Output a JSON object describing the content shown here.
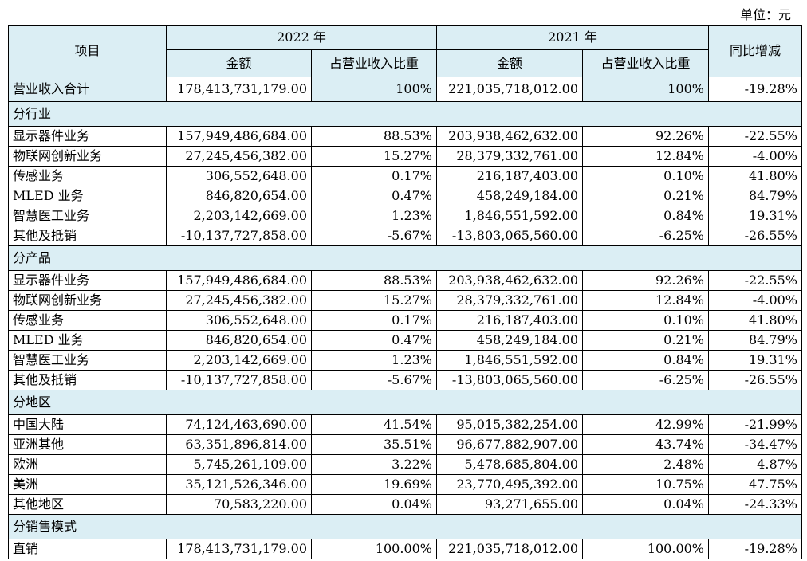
{
  "unit_label": "单位：元",
  "header": {
    "item": "项目",
    "year_2022": "2022 年",
    "year_2021": "2021 年",
    "yoy": "同比增减",
    "amount": "金额",
    "ratio": "占营业收入比重"
  },
  "total": {
    "label": "营业收入合计",
    "amt2022": "178,413,731,179.00",
    "pct2022": "100%",
    "amt2021": "221,035,718,012.00",
    "pct2021": "100%",
    "yoy": "-19.28%"
  },
  "sections": [
    {
      "title": "分行业",
      "rows": [
        {
          "label": "显示器件业务",
          "amt2022": "157,949,486,684.00",
          "pct2022": "88.53%",
          "amt2021": "203,938,462,632.00",
          "pct2021": "92.26%",
          "yoy": "-22.55%"
        },
        {
          "label": "物联网创新业务",
          "amt2022": "27,245,456,382.00",
          "pct2022": "15.27%",
          "amt2021": "28,379,332,761.00",
          "pct2021": "12.84%",
          "yoy": "-4.00%"
        },
        {
          "label": "传感业务",
          "amt2022": "306,552,648.00",
          "pct2022": "0.17%",
          "amt2021": "216,187,403.00",
          "pct2021": "0.10%",
          "yoy": "41.80%"
        },
        {
          "label": "MLED 业务",
          "amt2022": "846,820,654.00",
          "pct2022": "0.47%",
          "amt2021": "458,249,184.00",
          "pct2021": "0.21%",
          "yoy": "84.79%"
        },
        {
          "label": "智慧医工业务",
          "amt2022": "2,203,142,669.00",
          "pct2022": "1.23%",
          "amt2021": "1,846,551,592.00",
          "pct2021": "0.84%",
          "yoy": "19.31%"
        },
        {
          "label": "其他及抵销",
          "amt2022": "-10,137,727,858.00",
          "pct2022": "-5.67%",
          "amt2021": "-13,803,065,560.00",
          "pct2021": "-6.25%",
          "yoy": "-26.55%"
        }
      ]
    },
    {
      "title": "分产品",
      "rows": [
        {
          "label": "显示器件业务",
          "amt2022": "157,949,486,684.00",
          "pct2022": "88.53%",
          "amt2021": "203,938,462,632.00",
          "pct2021": "92.26%",
          "yoy": "-22.55%"
        },
        {
          "label": "物联网创新业务",
          "amt2022": "27,245,456,382.00",
          "pct2022": "15.27%",
          "amt2021": "28,379,332,761.00",
          "pct2021": "12.84%",
          "yoy": "-4.00%"
        },
        {
          "label": "传感业务",
          "amt2022": "306,552,648.00",
          "pct2022": "0.17%",
          "amt2021": "216,187,403.00",
          "pct2021": "0.10%",
          "yoy": "41.80%"
        },
        {
          "label": "MLED 业务",
          "amt2022": "846,820,654.00",
          "pct2022": "0.47%",
          "amt2021": "458,249,184.00",
          "pct2021": "0.21%",
          "yoy": "84.79%"
        },
        {
          "label": "智慧医工业务",
          "amt2022": "2,203,142,669.00",
          "pct2022": "1.23%",
          "amt2021": "1,846,551,592.00",
          "pct2021": "0.84%",
          "yoy": "19.31%"
        },
        {
          "label": "其他及抵销",
          "amt2022": "-10,137,727,858.00",
          "pct2022": "-5.67%",
          "amt2021": "-13,803,065,560.00",
          "pct2021": "-6.25%",
          "yoy": "-26.55%"
        }
      ]
    },
    {
      "title": "分地区",
      "rows": [
        {
          "label": "中国大陆",
          "amt2022": "74,124,463,690.00",
          "pct2022": "41.54%",
          "amt2021": "95,015,382,254.00",
          "pct2021": "42.99%",
          "yoy": "-21.99%"
        },
        {
          "label": "亚洲其他",
          "amt2022": "63,351,896,814.00",
          "pct2022": "35.51%",
          "amt2021": "96,677,882,907.00",
          "pct2021": "43.74%",
          "yoy": "-34.47%"
        },
        {
          "label": "欧洲",
          "amt2022": "5,745,261,109.00",
          "pct2022": "3.22%",
          "amt2021": "5,478,685,804.00",
          "pct2021": "2.48%",
          "yoy": "4.87%"
        },
        {
          "label": "美洲",
          "amt2022": "35,121,526,346.00",
          "pct2022": "19.69%",
          "amt2021": "23,770,495,392.00",
          "pct2021": "10.75%",
          "yoy": "47.75%"
        },
        {
          "label": "其他地区",
          "amt2022": "70,583,220.00",
          "pct2022": "0.04%",
          "amt2021": "93,271,655.00",
          "pct2021": "0.04%",
          "yoy": "-24.33%"
        }
      ]
    },
    {
      "title": "分销售模式",
      "rows": [
        {
          "label": "直销",
          "amt2022": "178,413,731,179.00",
          "pct2022": "100.00%",
          "amt2021": "221,035,718,012.00",
          "pct2021": "100.00%",
          "yoy": "-19.28%"
        }
      ]
    }
  ]
}
